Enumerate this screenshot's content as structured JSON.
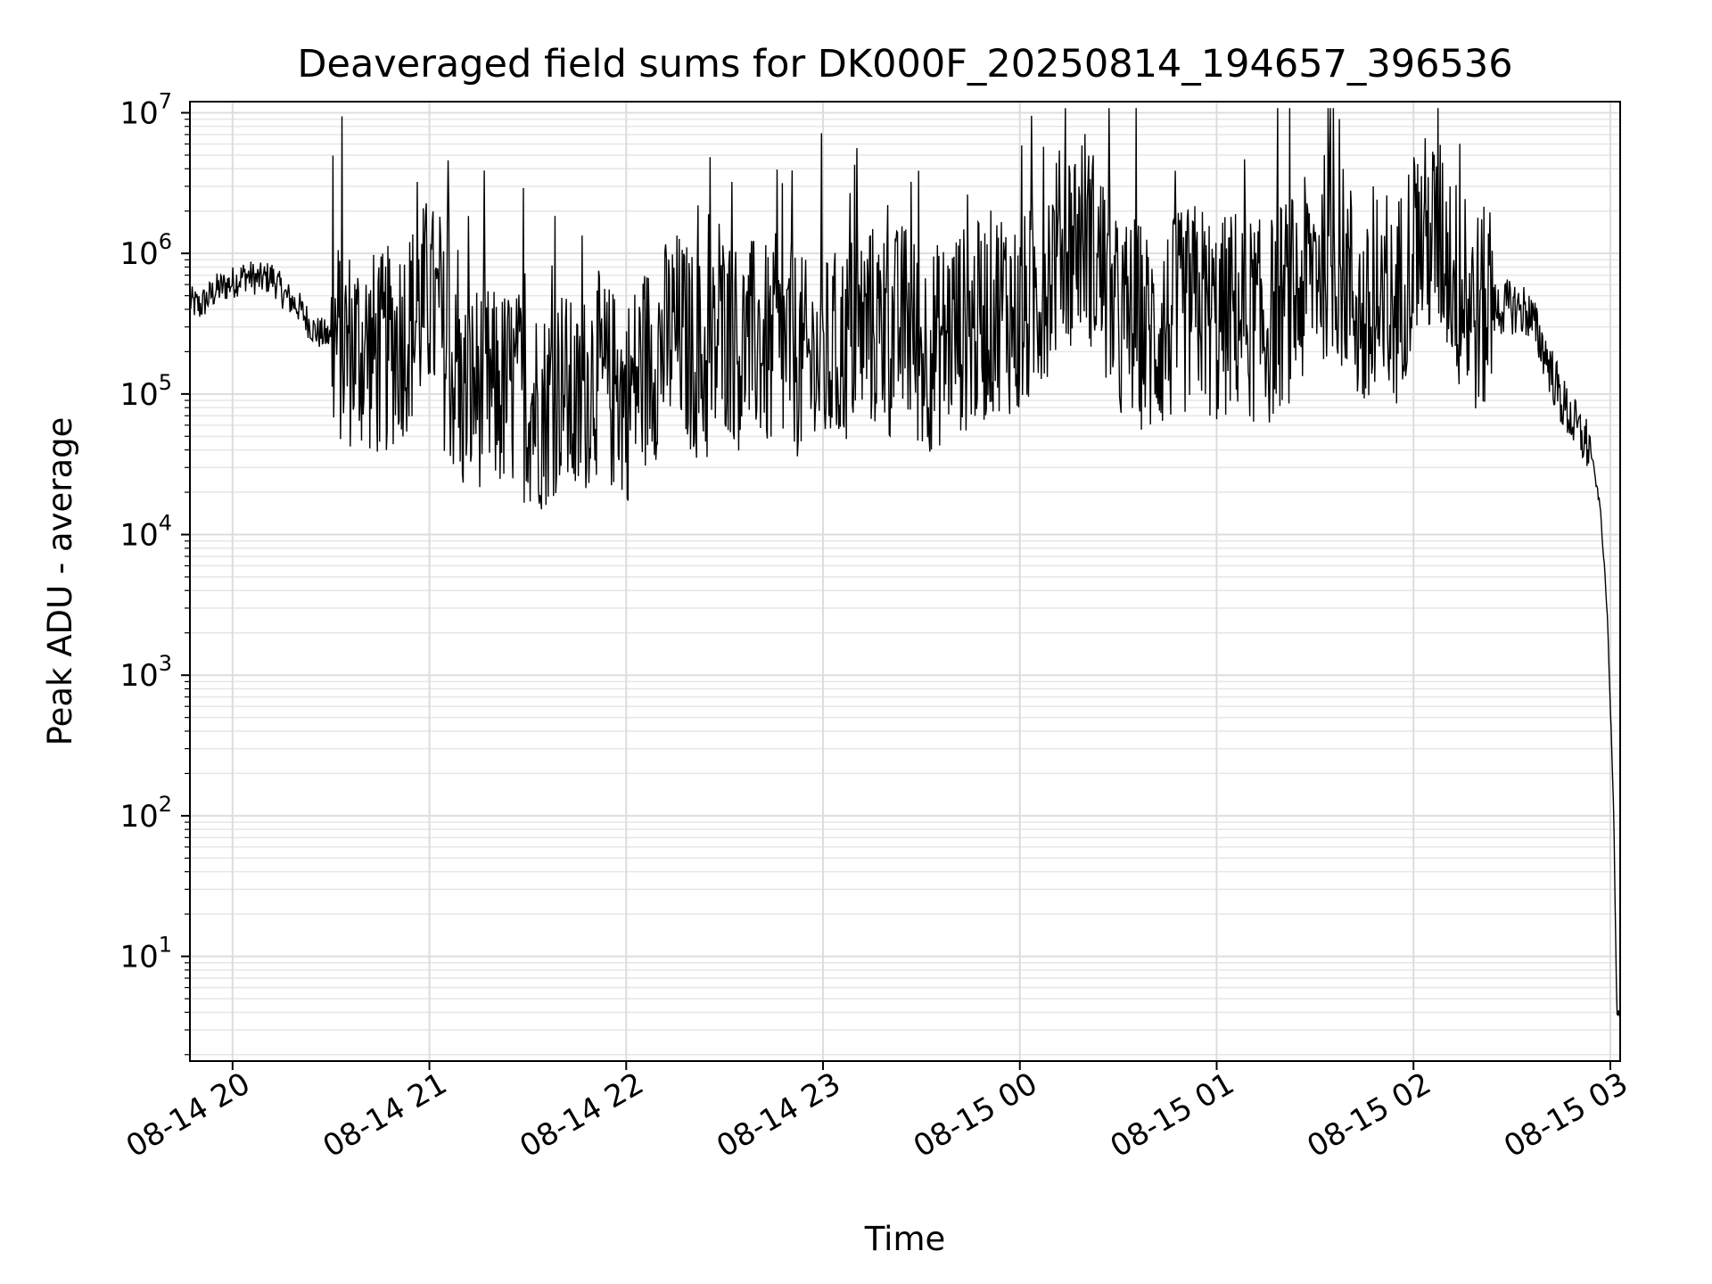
{
  "chart_data": {
    "type": "line",
    "title": "Deaveraged field sums for DK000F_20250814_194657_396536",
    "xlabel": "Time",
    "ylabel": "Peak ADU - average",
    "yscale": "log",
    "ylim": [
      1.8,
      12000000
    ],
    "xlim": [
      "2025-08-14 19:47",
      "2025-08-15 03:03"
    ],
    "grid": "on (major and minor)",
    "line_color": "#000000",
    "x_ticks": [
      {
        "value": "2025-08-14 20:00",
        "label": "08-14 20"
      },
      {
        "value": "2025-08-14 21:00",
        "label": "08-14 21"
      },
      {
        "value": "2025-08-14 22:00",
        "label": "08-14 22"
      },
      {
        "value": "2025-08-14 23:00",
        "label": "08-14 23"
      },
      {
        "value": "2025-08-15 00:00",
        "label": "08-15 00"
      },
      {
        "value": "2025-08-15 01:00",
        "label": "08-15 01"
      },
      {
        "value": "2025-08-15 02:00",
        "label": "08-15 02"
      },
      {
        "value": "2025-08-15 03:00",
        "label": "08-15 03"
      }
    ],
    "y_ticks": [
      {
        "value": 10,
        "base": "10",
        "exp": "1"
      },
      {
        "value": 100,
        "base": "10",
        "exp": "2"
      },
      {
        "value": 1000,
        "base": "10",
        "exp": "3"
      },
      {
        "value": 10000,
        "base": "10",
        "exp": "4"
      },
      {
        "value": 100000,
        "base": "10",
        "exp": "5"
      },
      {
        "value": 1000000,
        "base": "10",
        "exp": "6"
      },
      {
        "value": 10000000,
        "base": "10",
        "exp": "7"
      }
    ],
    "series": [
      {
        "x": [
          "2025-08-14 19:47",
          "2025-08-14 19:50",
          "2025-08-14 19:55",
          "2025-08-14 20:00",
          "2025-08-14 20:04",
          "2025-08-14 20:08",
          "2025-08-14 20:12",
          "2025-08-14 20:16",
          "2025-08-14 20:20",
          "2025-08-14 20:25",
          "2025-08-14 20:30",
          "2025-08-14 20:35",
          "2025-08-14 20:40",
          "2025-08-14 20:45",
          "2025-08-14 20:50",
          "2025-08-14 20:55",
          "2025-08-14 21:00",
          "2025-08-14 21:05",
          "2025-08-14 21:10",
          "2025-08-14 21:15",
          "2025-08-14 21:20",
          "2025-08-14 21:25",
          "2025-08-14 21:30",
          "2025-08-14 21:35",
          "2025-08-14 21:40",
          "2025-08-14 21:45",
          "2025-08-14 21:50",
          "2025-08-14 21:55",
          "2025-08-14 22:00",
          "2025-08-14 22:05",
          "2025-08-14 22:10",
          "2025-08-14 22:15",
          "2025-08-14 22:20",
          "2025-08-14 22:25",
          "2025-08-14 22:30",
          "2025-08-14 22:35",
          "2025-08-14 22:40",
          "2025-08-14 22:45",
          "2025-08-14 22:50",
          "2025-08-14 22:55",
          "2025-08-14 23:00",
          "2025-08-14 23:05",
          "2025-08-14 23:10",
          "2025-08-14 23:15",
          "2025-08-14 23:20",
          "2025-08-14 23:25",
          "2025-08-14 23:30",
          "2025-08-14 23:35",
          "2025-08-14 23:40",
          "2025-08-14 23:45",
          "2025-08-14 23:50",
          "2025-08-14 23:55",
          "2025-08-15 00:00",
          "2025-08-15 00:05",
          "2025-08-15 00:10",
          "2025-08-15 00:15",
          "2025-08-15 00:20",
          "2025-08-15 00:25",
          "2025-08-15 00:30",
          "2025-08-15 00:35",
          "2025-08-15 00:40",
          "2025-08-15 00:45",
          "2025-08-15 00:50",
          "2025-08-15 00:55",
          "2025-08-15 01:00",
          "2025-08-15 01:05",
          "2025-08-15 01:10",
          "2025-08-15 01:15",
          "2025-08-15 01:20",
          "2025-08-15 01:25",
          "2025-08-15 01:30",
          "2025-08-15 01:35",
          "2025-08-15 01:40",
          "2025-08-15 01:45",
          "2025-08-15 01:50",
          "2025-08-15 01:55",
          "2025-08-15 02:00",
          "2025-08-15 02:05",
          "2025-08-15 02:10",
          "2025-08-15 02:15",
          "2025-08-15 02:20",
          "2025-08-15 02:25",
          "2025-08-15 02:30",
          "2025-08-15 02:35",
          "2025-08-15 02:40",
          "2025-08-15 02:45",
          "2025-08-15 02:50",
          "2025-08-15 02:54",
          "2025-08-15 02:57",
          "2025-08-15 02:59",
          "2025-08-15 03:00",
          "2025-08-15 03:01",
          "2025-08-15 03:02",
          "2025-08-15 03:03"
        ],
        "y": [
          450000,
          420000,
          550000,
          620000,
          700000,
          650000,
          680000,
          500000,
          420000,
          280000,
          250000,
          220000,
          210000,
          180000,
          240000,
          320000,
          500000,
          200000,
          90000,
          120000,
          100000,
          110000,
          90000,
          80000,
          120000,
          70000,
          150000,
          110000,
          90000,
          150000,
          200000,
          280000,
          200000,
          150000,
          300000,
          200000,
          250000,
          180000,
          220000,
          160000,
          170000,
          200000,
          280000,
          300000,
          250000,
          320000,
          200000,
          220000,
          300000,
          280000,
          350000,
          450000,
          300000,
          500000,
          900000,
          1200000,
          1500000,
          700000,
          300000,
          350000,
          250000,
          300000,
          380000,
          450000,
          300000,
          400000,
          350000,
          300000,
          450000,
          500000,
          900000,
          1000000,
          700000,
          300000,
          250000,
          450000,
          1200000,
          1300000,
          1100000,
          450000,
          380000,
          400000,
          420000,
          380000,
          200000,
          90000,
          55000,
          40000,
          15000,
          3000,
          600,
          120,
          4,
          4
        ]
      }
    ]
  }
}
